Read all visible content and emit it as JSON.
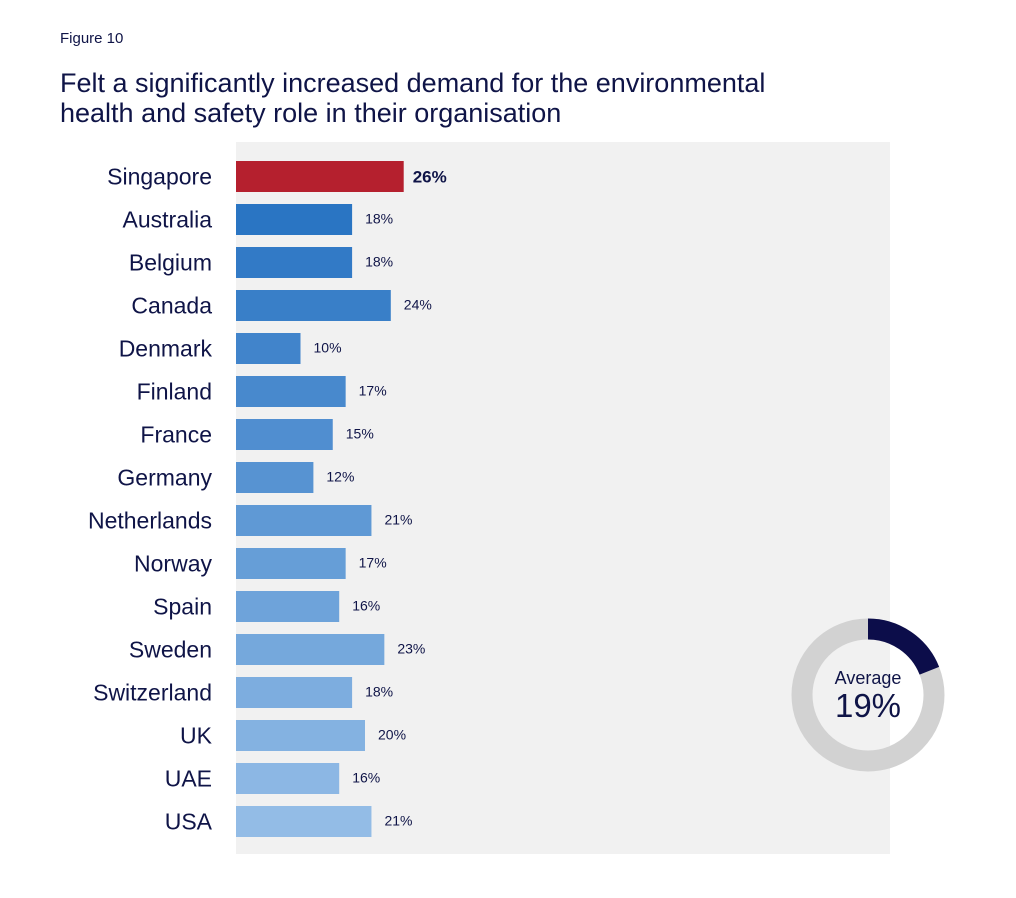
{
  "figure_label": "Figure 10",
  "title_lines": [
    "Felt a significantly increased demand for the environmental",
    "health and safety role in their organisation"
  ],
  "chart_data": {
    "type": "bar",
    "orientation": "horizontal",
    "title": "Felt a significantly increased demand for the environmental health and safety role in their organisation",
    "categories": [
      "Singapore",
      "Australia",
      "Belgium",
      "Canada",
      "Denmark",
      "Finland",
      "France",
      "Germany",
      "Netherlands",
      "Norway",
      "Spain",
      "Sweden",
      "Switzerland",
      "UK",
      "UAE",
      "USA"
    ],
    "values": [
      26,
      18,
      18,
      24,
      10,
      17,
      15,
      12,
      21,
      17,
      16,
      23,
      18,
      20,
      16,
      21
    ],
    "value_labels": [
      "26%",
      "18%",
      "18%",
      "24%",
      "10%",
      "17%",
      "15%",
      "12%",
      "21%",
      "17%",
      "16%",
      "23%",
      "18%",
      "20%",
      "16%",
      "21%"
    ],
    "highlight_category": "Singapore",
    "highlight_color": "#b5202e",
    "bar_color_start": "#2a75c3",
    "bar_color_end": "#93bce6",
    "plot_background": "#f1f1f1",
    "xlim": [
      0,
      100
    ],
    "grid": false,
    "legend": "none",
    "average": {
      "label": "Average",
      "value": 19,
      "value_label": "19%",
      "fill_color": "#0c0d4a",
      "track_color": "#d2d2d2"
    }
  }
}
